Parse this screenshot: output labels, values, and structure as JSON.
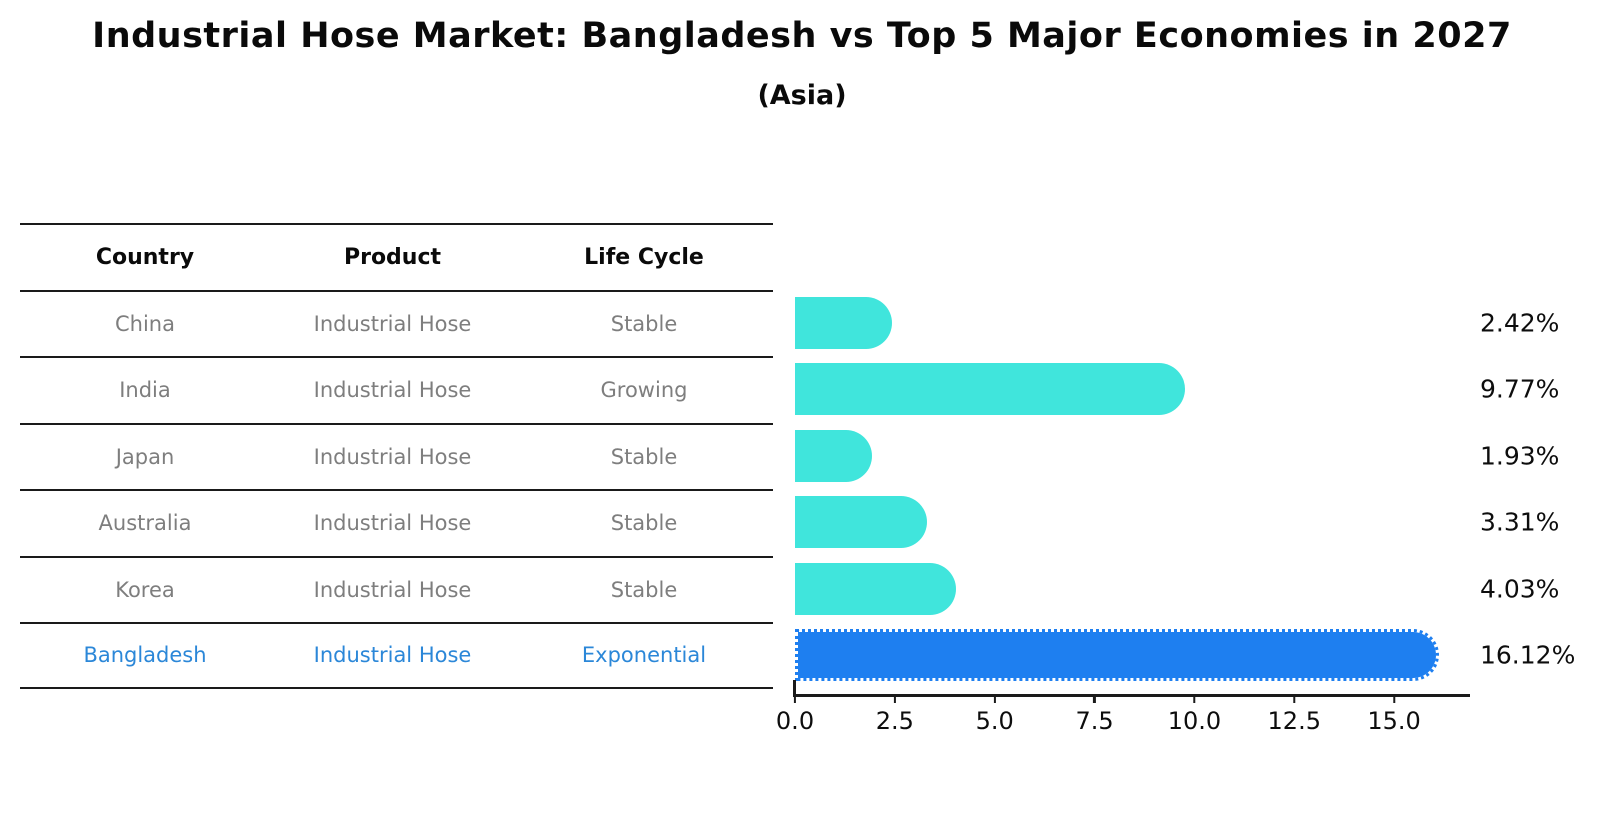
{
  "title": "Industrial Hose Market: Bangladesh vs Top 5 Major Economies in 2027",
  "subtitle": "(Asia)",
  "table": {
    "columns": [
      "Country",
      "Product",
      "Life Cycle"
    ],
    "rows": [
      {
        "country": "China",
        "product": "Industrial Hose",
        "life_cycle": "Stable",
        "value_label": "2.42%"
      },
      {
        "country": "India",
        "product": "Industrial Hose",
        "life_cycle": "Growing",
        "value_label": "9.77%"
      },
      {
        "country": "Japan",
        "product": "Industrial Hose",
        "life_cycle": "Stable",
        "value_label": "1.93%"
      },
      {
        "country": "Australia",
        "product": "Industrial Hose",
        "life_cycle": "Stable",
        "value_label": "3.31%"
      },
      {
        "country": "Korea",
        "product": "Industrial Hose",
        "life_cycle": "Stable",
        "value_label": "4.03%"
      },
      {
        "country": "Bangladesh",
        "product": "Industrial Hose",
        "life_cycle": "Exponential",
        "value_label": "16.12%"
      }
    ]
  },
  "chart_data": {
    "type": "bar",
    "orientation": "horizontal",
    "title": "Industrial Hose Market: Bangladesh vs Top 5 Major Economies in 2027",
    "subtitle": "(Asia)",
    "categories": [
      "China",
      "India",
      "Japan",
      "Australia",
      "Korea",
      "Bangladesh"
    ],
    "values": [
      2.42,
      9.77,
      1.93,
      3.31,
      4.03,
      16.12
    ],
    "value_labels": [
      "2.42%",
      "9.77%",
      "1.93%",
      "3.31%",
      "4.03%",
      "16.12%"
    ],
    "xlabel": "",
    "ylabel": "",
    "xlim": [
      0,
      16.9
    ],
    "x_ticks": [
      0,
      2.5,
      5,
      7.5,
      10,
      12.5,
      15
    ],
    "x_tick_labels": [
      "0.0",
      "2.5",
      "5.0",
      "7.5",
      "10.0",
      "12.5",
      "15.0"
    ],
    "grid": "off",
    "legend": "none",
    "bar_color": "#40E5DC",
    "highlight_index": 5,
    "highlight_bar_color": "#1E7FF0",
    "highlight_bar_border": "dotted",
    "highlight_text_color": "#2B87D8",
    "row_text_color": "#7E7E7E",
    "axis_color": "#1a1a1a"
  }
}
